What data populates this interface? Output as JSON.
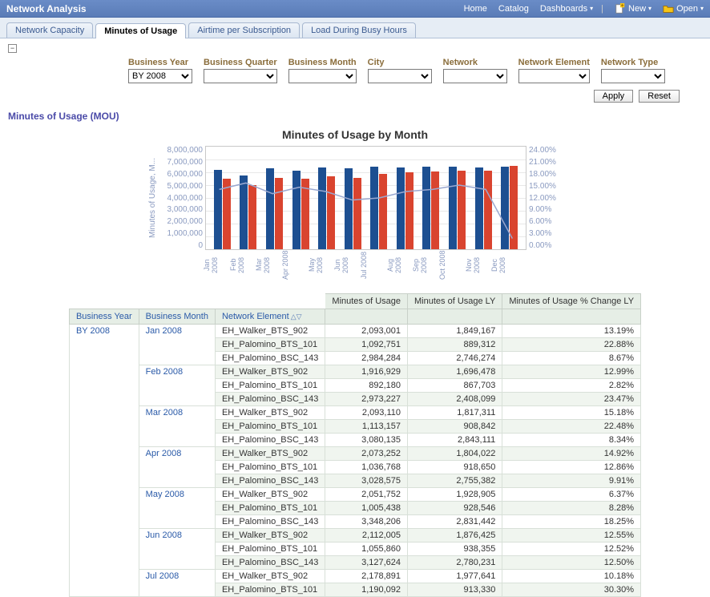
{
  "topbar": {
    "title": "Network Analysis",
    "links": {
      "home": "Home",
      "catalog": "Catalog",
      "dashboards": "Dashboards",
      "new": "New",
      "open": "Open"
    }
  },
  "tabs": [
    {
      "id": "capacity",
      "label": "Network Capacity",
      "active": false
    },
    {
      "id": "mou",
      "label": "Minutes of Usage",
      "active": true
    },
    {
      "id": "airtime",
      "label": "Airtime per Subscription",
      "active": false
    },
    {
      "id": "load",
      "label": "Load During Busy Hours",
      "active": false
    }
  ],
  "filters": {
    "business_year": {
      "label": "Business Year",
      "value": "BY 2008"
    },
    "business_quarter": {
      "label": "Business Quarter",
      "value": ""
    },
    "business_month": {
      "label": "Business Month",
      "value": ""
    },
    "city": {
      "label": "City",
      "value": ""
    },
    "network": {
      "label": "Network",
      "value": ""
    },
    "network_element": {
      "label": "Network Element",
      "value": ""
    },
    "network_type": {
      "label": "Network Type",
      "value": ""
    }
  },
  "buttons": {
    "apply": "Apply",
    "reset": "Reset"
  },
  "section_title": "Minutes of Usage (MOU)",
  "chart": {
    "title": "Minutes of Usage by Month",
    "y_label": "Minutes of Usage, M...",
    "y_max": 8000000,
    "y_ticks": [
      "8,000,000",
      "7,000,000",
      "6,000,000",
      "5,000,000",
      "4,000,000",
      "3,000,000",
      "2,000,000",
      "1,000,000",
      "0"
    ],
    "y2_ticks": [
      "24.00%",
      "21.00%",
      "18.00%",
      "15.00%",
      "12.00%",
      "9.00%",
      "6.00%",
      "3.00%",
      "0.00%"
    ],
    "y2_max": 24,
    "categories": [
      "Jan 2008",
      "Feb 2008",
      "Mar 2008",
      "Apr 2008",
      "May 2008",
      "Jun 2008",
      "Jul 2008",
      "Aug 2008",
      "Sep 2008",
      "Oct 2008",
      "Nov 2008",
      "Dec 2008"
    ],
    "series_blue": [
      6170000,
      5781000,
      6286000,
      6138000,
      6405000,
      6295000,
      6425000,
      6350000,
      6420000,
      6410000,
      6380000,
      6450000
    ],
    "series_red": [
      5485000,
      4971000,
      5569000,
      5478000,
      5689000,
      5585000,
      5869000,
      6000000,
      6050000,
      6100000,
      6150000,
      6500000
    ],
    "line_pct": [
      14.0,
      15.5,
      13.0,
      14.5,
      13.5,
      11.5,
      12.0,
      13.5,
      14.0,
      15.0,
      14.0,
      2.5
    ],
    "colors": {
      "blue": "#1d4f91",
      "red": "#d9442f",
      "line": "#9aa8d0",
      "grid": "#e8e8e8"
    }
  },
  "table": {
    "columns": {
      "by": "Business Year",
      "bm": "Business Month",
      "ne": "Network Element",
      "mou": "Minutes of Usage",
      "mou_ly": "Minutes of Usage LY",
      "pct": "Minutes of Usage % Change LY"
    },
    "business_year": "BY 2008",
    "groups": [
      {
        "month": "Jan 2008",
        "rows": [
          {
            "ne": "EH_Walker_BTS_902",
            "mou": "2,093,001",
            "ly": "1,849,167",
            "pct": "13.19%"
          },
          {
            "ne": "EH_Palomino_BTS_101",
            "mou": "1,092,751",
            "ly": "889,312",
            "pct": "22.88%"
          },
          {
            "ne": "EH_Palomino_BSC_143",
            "mou": "2,984,284",
            "ly": "2,746,274",
            "pct": "8.67%"
          }
        ]
      },
      {
        "month": "Feb 2008",
        "rows": [
          {
            "ne": "EH_Walker_BTS_902",
            "mou": "1,916,929",
            "ly": "1,696,478",
            "pct": "12.99%"
          },
          {
            "ne": "EH_Palomino_BTS_101",
            "mou": "892,180",
            "ly": "867,703",
            "pct": "2.82%"
          },
          {
            "ne": "EH_Palomino_BSC_143",
            "mou": "2,973,227",
            "ly": "2,408,099",
            "pct": "23.47%"
          }
        ]
      },
      {
        "month": "Mar 2008",
        "rows": [
          {
            "ne": "EH_Walker_BTS_902",
            "mou": "2,093,110",
            "ly": "1,817,311",
            "pct": "15.18%"
          },
          {
            "ne": "EH_Palomino_BTS_101",
            "mou": "1,113,157",
            "ly": "908,842",
            "pct": "22.48%"
          },
          {
            "ne": "EH_Palomino_BSC_143",
            "mou": "3,080,135",
            "ly": "2,843,111",
            "pct": "8.34%"
          }
        ]
      },
      {
        "month": "Apr 2008",
        "rows": [
          {
            "ne": "EH_Walker_BTS_902",
            "mou": "2,073,252",
            "ly": "1,804,022",
            "pct": "14.92%"
          },
          {
            "ne": "EH_Palomino_BTS_101",
            "mou": "1,036,768",
            "ly": "918,650",
            "pct": "12.86%"
          },
          {
            "ne": "EH_Palomino_BSC_143",
            "mou": "3,028,575",
            "ly": "2,755,382",
            "pct": "9.91%"
          }
        ]
      },
      {
        "month": "May 2008",
        "rows": [
          {
            "ne": "EH_Walker_BTS_902",
            "mou": "2,051,752",
            "ly": "1,928,905",
            "pct": "6.37%"
          },
          {
            "ne": "EH_Palomino_BTS_101",
            "mou": "1,005,438",
            "ly": "928,546",
            "pct": "8.28%"
          },
          {
            "ne": "EH_Palomino_BSC_143",
            "mou": "3,348,206",
            "ly": "2,831,442",
            "pct": "18.25%"
          }
        ]
      },
      {
        "month": "Jun 2008",
        "rows": [
          {
            "ne": "EH_Walker_BTS_902",
            "mou": "2,112,005",
            "ly": "1,876,425",
            "pct": "12.55%"
          },
          {
            "ne": "EH_Palomino_BTS_101",
            "mou": "1,055,860",
            "ly": "938,355",
            "pct": "12.52%"
          },
          {
            "ne": "EH_Palomino_BSC_143",
            "mou": "3,127,624",
            "ly": "2,780,231",
            "pct": "12.50%"
          }
        ]
      },
      {
        "month": "Jul 2008",
        "rows": [
          {
            "ne": "EH_Walker_BTS_902",
            "mou": "2,178,891",
            "ly": "1,977,641",
            "pct": "10.18%"
          },
          {
            "ne": "EH_Palomino_BTS_101",
            "mou": "1,190,092",
            "ly": "913,330",
            "pct": "30.30%"
          }
        ]
      }
    ]
  }
}
